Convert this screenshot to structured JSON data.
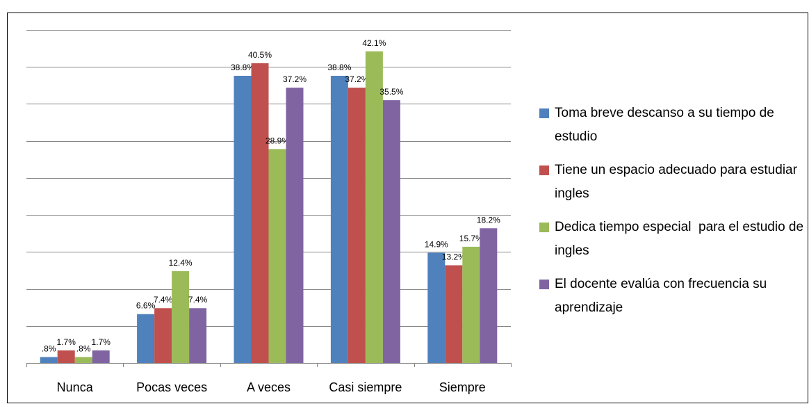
{
  "chart_data": {
    "type": "bar",
    "categories": [
      "Nunca",
      "Pocas veces",
      "A veces",
      "Casi siempre",
      "Siempre"
    ],
    "series": [
      {
        "name": "Toma breve descanso a su tiempo de estudio",
        "color": "#4f81bd",
        "values": [
          0.8,
          6.6,
          38.8,
          38.8,
          14.9
        ],
        "value_labels": [
          ".8%",
          "6.6%",
          "38.8%",
          "38.8%",
          "14.9%"
        ]
      },
      {
        "name": "Tiene un espacio adecuado para estudiar ingles",
        "color": "#c0504d",
        "values": [
          1.7,
          7.4,
          40.5,
          37.2,
          13.2
        ],
        "value_labels": [
          "1.7%",
          "7.4%",
          "40.5%",
          "37.2%",
          "13.2%"
        ]
      },
      {
        "name": "Dedica tiempo especial  para el estudio de ingles",
        "color": "#9bbb59",
        "values": [
          0.8,
          12.4,
          28.9,
          42.1,
          15.7
        ],
        "value_labels": [
          ".8%",
          "12.4%",
          "28.9%",
          "42.1%",
          "15.7%"
        ]
      },
      {
        "name": "El docente evalúa con frecuencia su aprendizaje",
        "color": "#8064a2",
        "values": [
          1.7,
          7.4,
          37.2,
          35.5,
          18.2
        ],
        "value_labels": [
          "1.7%",
          "7.4%",
          "37.2%",
          "35.5%",
          "18.2%"
        ]
      }
    ],
    "ylim": [
      0,
      45
    ],
    "yticks": [
      0,
      5,
      10,
      15,
      20,
      25,
      30,
      35,
      40,
      45
    ],
    "grid": true,
    "legend": "right"
  }
}
